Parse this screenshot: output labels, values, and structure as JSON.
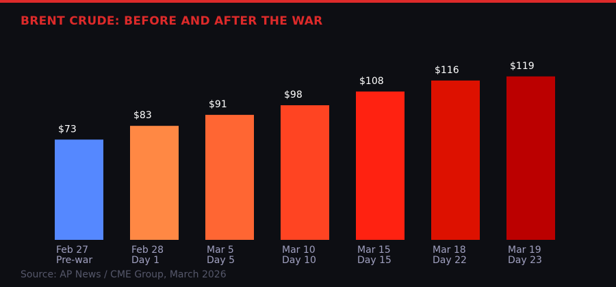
{
  "chart_data": {
    "type": "bar",
    "title": "BRENT CRUDE: BEFORE AND AFTER THE WAR",
    "categories": [
      [
        "Feb 27",
        "Pre-war"
      ],
      [
        "Feb 28",
        "Day 1"
      ],
      [
        "Mar 5",
        "Day 5"
      ],
      [
        "Mar 10",
        "Day 10"
      ],
      [
        "Mar 15",
        "Day 15"
      ],
      [
        "Mar 18",
        "Day 22"
      ],
      [
        "Mar 19",
        "Day 23"
      ]
    ],
    "values": [
      73,
      83,
      91,
      98,
      108,
      116,
      119
    ],
    "data_labels": [
      "$73",
      "$83",
      "$91",
      "$98",
      "$108",
      "$116",
      "$119"
    ],
    "colors": [
      "#5588ff",
      "#ff8844",
      "#ff6633",
      "#ff4422",
      "#ff2211",
      "#dd1100",
      "#bb0000"
    ],
    "ylim": [
      0,
      125
    ],
    "grid": false,
    "source": "Source: AP News / CME Group, March 2026"
  },
  "accent_color": "#dd2a2a"
}
